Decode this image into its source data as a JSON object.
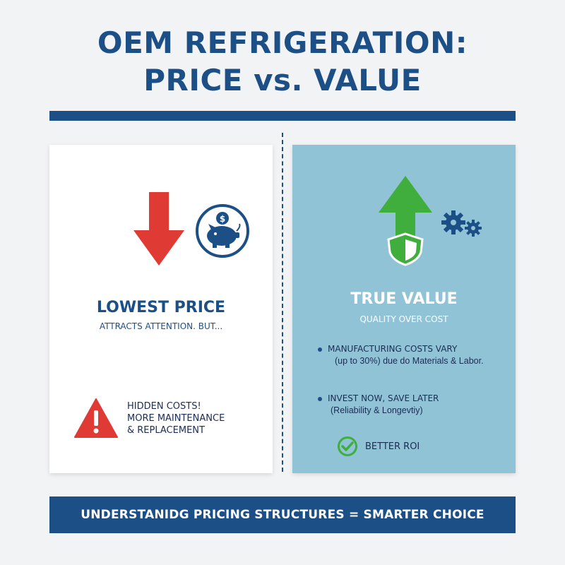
{
  "header": {
    "title_line1": "OEM REFRIGERATION:",
    "title_line2": "PRICE vs. VALUE"
  },
  "left_panel": {
    "heading": "LOWEST PRICE",
    "subheading": "ATTRACTS ATTENTION. BUT...",
    "warning_line1": "HIDDEN COSTS!",
    "warning_line2": "MORE MAINTENANCE",
    "warning_line3": "& REPLACEMENT",
    "icons": [
      "arrow-down-icon",
      "piggy-bank-icon",
      "warning-icon"
    ]
  },
  "right_panel": {
    "heading": "TRUE VALUE",
    "subheading": "QUALITY OVER COST",
    "bullets": [
      {
        "title": "MANUFACTURING COSTS VARY",
        "detail": "(up to 30%) due do Materials & Labor."
      },
      {
        "title": "INVEST NOW, SAVE LATER",
        "detail": "(Reliability & Longevtiy)"
      }
    ],
    "roi_label": "BETTER ROI",
    "icons": [
      "arrow-up-shield-icon",
      "gears-icon",
      "checkmark-circle-icon"
    ]
  },
  "footer": {
    "text": "UNDERSTANIDG PRICING STRUCTURES = SMARTER CHOICE"
  },
  "colors": {
    "navy": "#1d4f87",
    "red": "#e03a34",
    "green": "#3fae3c",
    "panel_blue": "#91c3d6",
    "background": "#f2f3f5"
  }
}
